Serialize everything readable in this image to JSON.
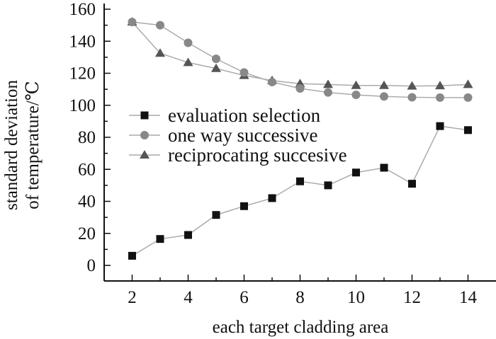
{
  "chart_data": {
    "type": "line",
    "title": "",
    "xlabel": "each target cladding area",
    "ylabel_lines": [
      "standard deviation",
      "of temperature/℃"
    ],
    "xlim": [
      1,
      15
    ],
    "ylim": [
      -10,
      160
    ],
    "x_ticks": [
      2,
      4,
      6,
      8,
      10,
      12,
      14
    ],
    "y_ticks": [
      0,
      20,
      40,
      60,
      80,
      100,
      120,
      140,
      160
    ],
    "legend_position": "center-left",
    "grid": false,
    "x": [
      2,
      3,
      4,
      5,
      6,
      7,
      8,
      9,
      10,
      11,
      12,
      13,
      14
    ],
    "series": [
      {
        "name": "evaluation selection",
        "marker": "square",
        "color": "#111111",
        "values": [
          6,
          16.5,
          19,
          31.5,
          37,
          42,
          52.5,
          50,
          58,
          61,
          51,
          87,
          84.5
        ]
      },
      {
        "name": "one way successive",
        "marker": "circle",
        "color": "#888888",
        "values": [
          152,
          150,
          139,
          129,
          120.5,
          114.5,
          110.5,
          108,
          106.5,
          105.5,
          105,
          104.8,
          104.8
        ]
      },
      {
        "name": "reciprocating succesive",
        "marker": "triangle",
        "color": "#555555",
        "values": [
          152,
          132.5,
          126.7,
          123,
          118.6,
          115.4,
          113.5,
          113,
          112.4,
          112.4,
          112,
          112.2,
          113
        ]
      }
    ]
  }
}
